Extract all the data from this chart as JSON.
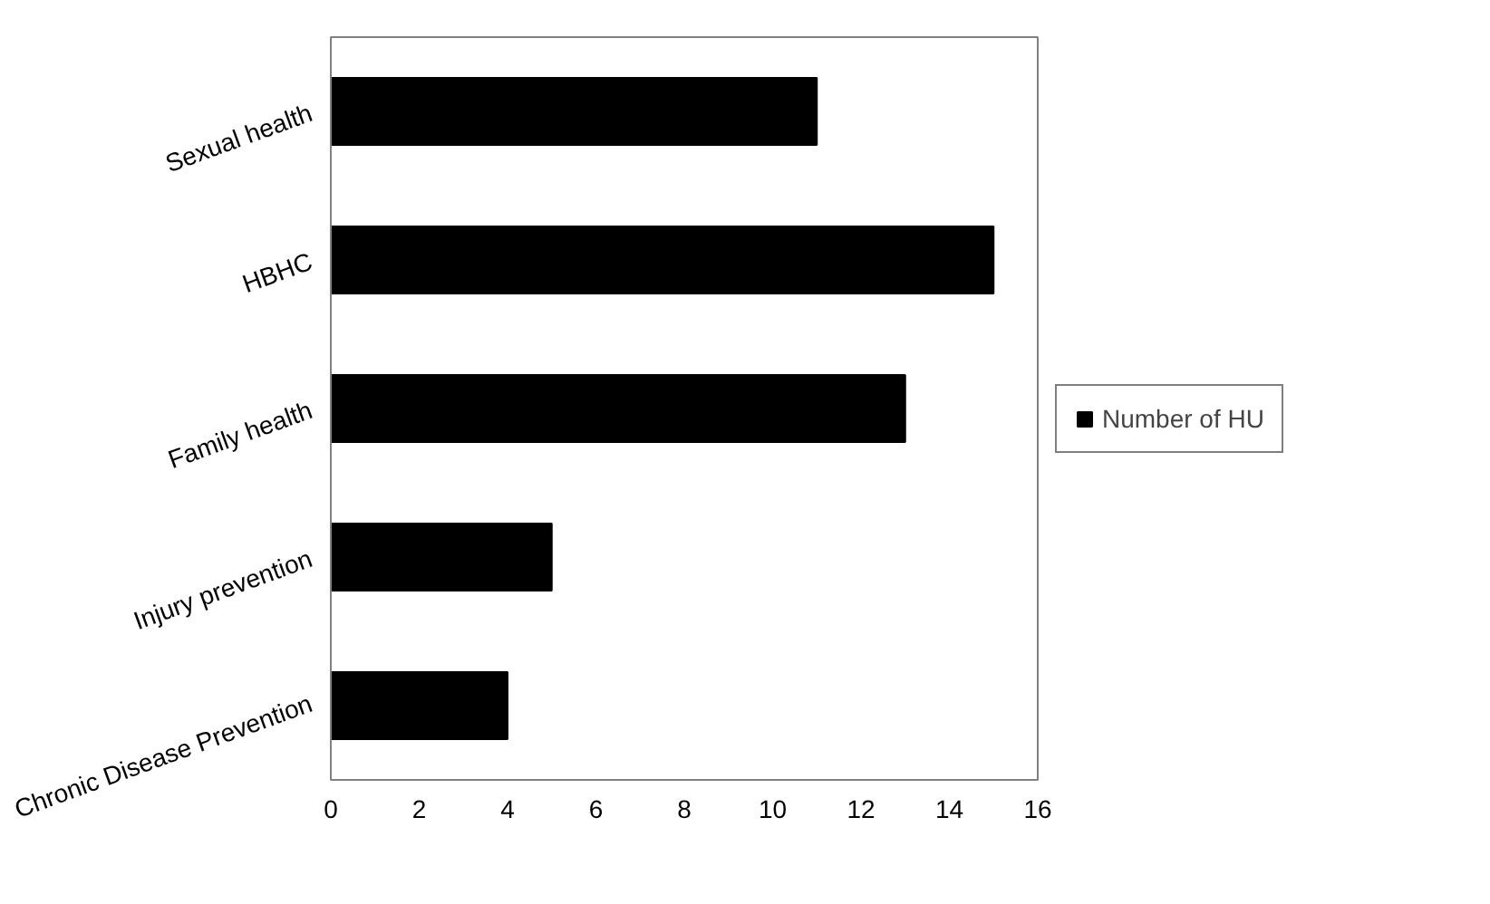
{
  "chart_data": {
    "type": "bar",
    "orientation": "horizontal",
    "categories": [
      "Sexual health",
      "HBHC",
      "Family health",
      "Injury prevention",
      "Chronic Disease Prevention"
    ],
    "series": [
      {
        "name": "Number of HU",
        "color": "#000000",
        "values": [
          11,
          15,
          13,
          5,
          4
        ]
      }
    ],
    "xlim": [
      0,
      16
    ],
    "xticks": [
      0,
      2,
      4,
      6,
      8,
      10,
      12,
      14,
      16
    ],
    "grid": false,
    "legend": "right"
  }
}
